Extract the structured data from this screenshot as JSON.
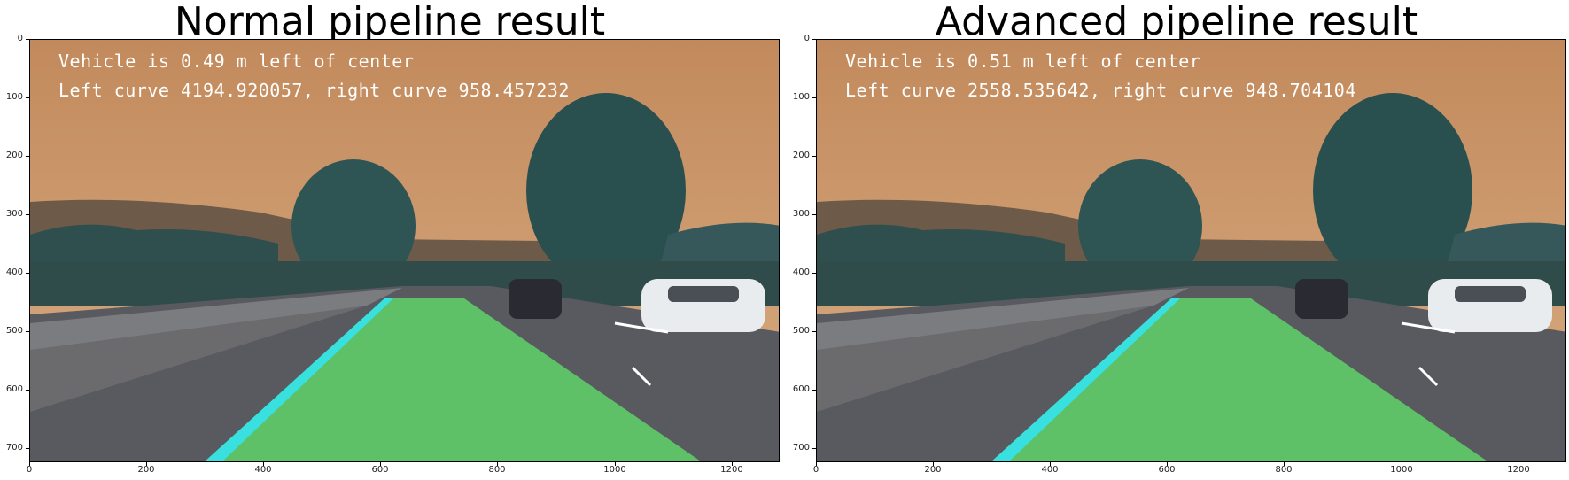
{
  "panels": [
    {
      "title": "Normal pipeline result",
      "vehicle_text": "Vehicle is 0.49 m left of center",
      "curve_text": "Left curve 4194.920057, right curve 958.457232"
    },
    {
      "title": "Advanced pipeline result",
      "vehicle_text": "Vehicle is 0.51 m left of center",
      "curve_text": "Left curve 2558.535642, right curve 948.704104"
    }
  ],
  "axis": {
    "y_ticks": [
      "0",
      "100",
      "200",
      "300",
      "400",
      "500",
      "600",
      "700"
    ],
    "x_ticks": [
      "0",
      "200",
      "400",
      "600",
      "800",
      "1000",
      "1200"
    ]
  },
  "colors": {
    "sky": "#c9966b",
    "lane_fill": "#5fd36a",
    "lane_line": "#38e0e0"
  }
}
